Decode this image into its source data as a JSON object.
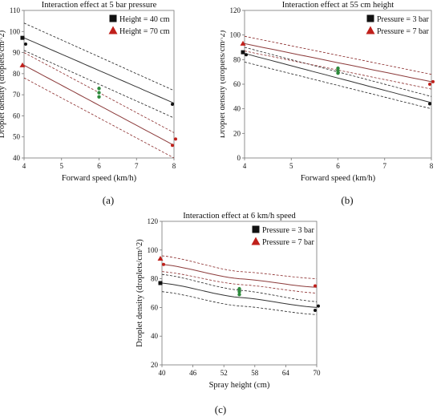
{
  "captions": [
    "(a)",
    "(b)",
    "(c)"
  ],
  "chart_data": [
    {
      "type": "line",
      "title": "Interaction effect at 5 bar pressure",
      "xlabel": "Forward speed (km/h)",
      "ylabel": "Droplet density (droplets/cm^2)",
      "xlim": [
        4,
        8
      ],
      "ylim": [
        40,
        110
      ],
      "xticks": [
        4,
        5,
        6,
        7,
        8
      ],
      "yticks": [
        40,
        50,
        60,
        70,
        80,
        90,
        100,
        110
      ],
      "legend_position": "top-right",
      "series": [
        {
          "name": "Height = 40 cm",
          "marker": "square",
          "color": "#111111",
          "fit": [
            [
              4,
              97
            ],
            [
              8,
              66
            ]
          ],
          "upper": [
            [
              4,
              104
            ],
            [
              8,
              72
            ]
          ],
          "lower": [
            [
              4,
              91
            ],
            [
              8,
              59
            ]
          ],
          "points": [
            [
              4,
              97
            ],
            [
              4,
              94
            ],
            [
              8,
              65.5
            ]
          ]
        },
        {
          "name": "Height = 70 cm",
          "marker": "triangle",
          "color": "#c0201b",
          "fit": [
            [
              4,
              84
            ],
            [
              8,
              46
            ]
          ],
          "upper": [
            [
              4,
              90
            ],
            [
              8,
              52
            ]
          ],
          "lower": [
            [
              4,
              78
            ],
            [
              8,
              40
            ]
          ],
          "points": [
            [
              4,
              84
            ],
            [
              8,
              49
            ],
            [
              8,
              46
            ]
          ]
        }
      ],
      "center_points": [
        [
          6,
          73
        ],
        [
          6,
          71
        ],
        [
          6,
          69
        ]
      ]
    },
    {
      "type": "line",
      "title": "Interaction effect at 55 cm height",
      "xlabel": "Forward speed (km/h)",
      "ylabel": "Droplet density (droplets/cm^2)",
      "xlim": [
        4,
        8
      ],
      "ylim": [
        0,
        120
      ],
      "xticks": [
        4,
        5,
        6,
        7,
        8
      ],
      "yticks": [
        0,
        20,
        40,
        60,
        80,
        100,
        120
      ],
      "legend_position": "top-right",
      "series": [
        {
          "name": "Pressure = 3 bar",
          "marker": "square",
          "color": "#111111",
          "fit": [
            [
              4,
              85
            ],
            [
              8,
              45
            ]
          ],
          "upper": [
            [
              4,
              90
            ],
            [
              8,
              50
            ]
          ],
          "lower": [
            [
              4,
              78
            ],
            [
              8,
              40
            ]
          ],
          "points": [
            [
              4,
              86
            ],
            [
              4,
              84
            ],
            [
              8,
              44
            ]
          ]
        },
        {
          "name": "Pressure = 7 bar",
          "marker": "triangle",
          "color": "#c0201b",
          "fit": [
            [
              4,
              93
            ],
            [
              8,
              62
            ]
          ],
          "upper": [
            [
              4,
              99
            ],
            [
              8,
              68
            ]
          ],
          "lower": [
            [
              4,
              87
            ],
            [
              8,
              56
            ]
          ],
          "points": [
            [
              4,
              93
            ],
            [
              8,
              62
            ],
            [
              8,
              60
            ]
          ]
        }
      ],
      "center_points": [
        [
          6,
          73
        ],
        [
          6,
          71
        ],
        [
          6,
          69
        ]
      ]
    },
    {
      "type": "line",
      "title": "Interaction effect at 6 km/h speed",
      "xlabel": "Spray height (cm)",
      "ylabel": "Droplet density (droplets/cm^2)",
      "xlim": [
        40,
        70
      ],
      "ylim": [
        20,
        120
      ],
      "xticks": [
        40,
        46,
        52,
        58,
        64,
        70
      ],
      "yticks": [
        20,
        40,
        60,
        80,
        100,
        120
      ],
      "legend_position": "top-right",
      "series": [
        {
          "name": "Pressure = 3 bar",
          "marker": "square",
          "color": "#111111",
          "fit": [
            [
              40,
              77
            ],
            [
              55,
              67
            ],
            [
              70,
              60
            ]
          ],
          "upper": [
            [
              40,
              83
            ],
            [
              55,
              72
            ],
            [
              70,
              64
            ]
          ],
          "lower": [
            [
              40,
              71
            ],
            [
              55,
              61
            ],
            [
              70,
              55
            ]
          ],
          "points": [
            [
              40,
              77
            ],
            [
              70,
              61
            ],
            [
              70,
              58
            ]
          ]
        },
        {
          "name": "Pressure = 7 bar",
          "marker": "triangle",
          "color": "#c0201b",
          "fit": [
            [
              40,
              90
            ],
            [
              55,
              80
            ],
            [
              70,
              74
            ]
          ],
          "upper": [
            [
              40,
              96
            ],
            [
              55,
              85
            ],
            [
              70,
              80
            ]
          ],
          "lower": [
            [
              40,
              85
            ],
            [
              55,
              76
            ],
            [
              70,
              70
            ]
          ],
          "points": [
            [
              40,
              94
            ],
            [
              40,
              90
            ],
            [
              70,
              75
            ]
          ]
        }
      ],
      "center_points": [
        [
          55,
          73
        ],
        [
          55,
          71
        ],
        [
          55,
          69
        ]
      ]
    }
  ]
}
